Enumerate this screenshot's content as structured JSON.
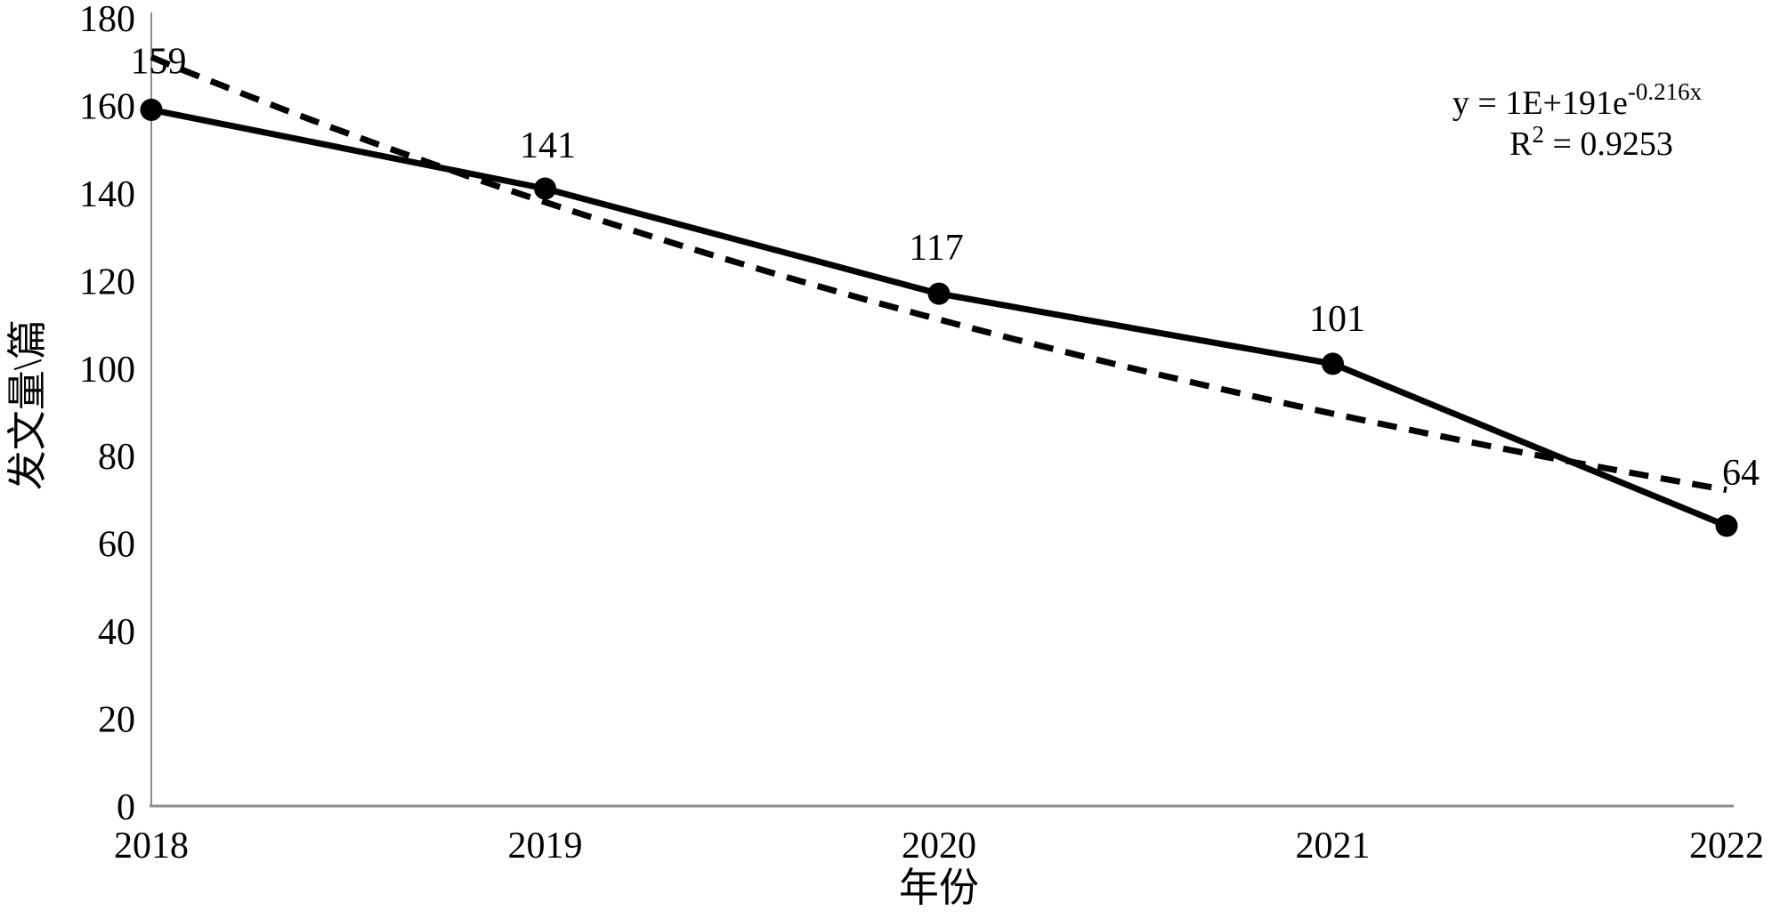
{
  "chart_data": {
    "type": "line",
    "title": "",
    "categories": [
      "2018",
      "2019",
      "2020",
      "2021",
      "2022"
    ],
    "series": [
      {
        "name": "发文量",
        "style": "solid",
        "markers": "filled-circle",
        "color": "#000000",
        "values": [
          159,
          141,
          117,
          101,
          64
        ]
      },
      {
        "name": "exponential-trendline",
        "style": "dashed",
        "color": "#000000",
        "values": [
          171.0,
          137.9,
          111.1,
          89.6,
          72.2
        ]
      }
    ],
    "point_labels": [
      "159",
      "141",
      "117",
      "101",
      "64"
    ],
    "xlabel": "年份",
    "ylabel": "发文量\\篇",
    "ylim": [
      0,
      180
    ],
    "yticks": [
      0,
      20,
      40,
      60,
      80,
      100,
      120,
      140,
      160,
      180
    ],
    "grid": false,
    "legend": "none",
    "axis_color": "#8c8c8c",
    "annotation": {
      "equation_base": "y = 1E+191e",
      "equation_exponent": "-0.216x",
      "r2_base": "R",
      "r2_sup": "2",
      "r2_rest": " = 0.9253"
    }
  }
}
